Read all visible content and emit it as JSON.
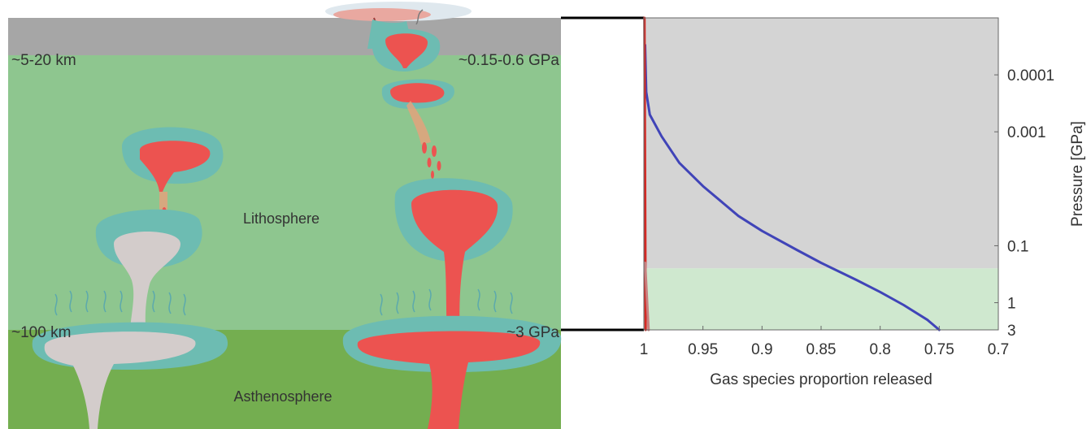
{
  "diagram": {
    "depth_labels": {
      "shallow": "~5-20 km",
      "deep": "~100 km"
    },
    "pressure_labels": {
      "shallow": "~0.15-0.6 GPa",
      "deep": "~3 GPa"
    },
    "layer_labels": {
      "lithosphere": "Lithosphere",
      "asthenosphere": "Asthenosphere"
    },
    "colors": {
      "crust": "#a6a6a6",
      "lithosphere": "#8ec68f",
      "asthenosphere": "#74ae50",
      "magma": "#ec5350",
      "halo": "#6dbcb2",
      "residual_magma": "#d3cccb",
      "vapour": "#5ba9ad"
    }
  },
  "chart_data": {
    "type": "line",
    "xlabel": "Gas species proportion released",
    "ylabel": "Pressure [GPa]",
    "x_ticks": [
      "1",
      "0.95",
      "0.9",
      "0.85",
      "0.8",
      "0.75",
      "0.7"
    ],
    "x_tick_values": [
      1,
      0.95,
      0.9,
      0.85,
      0.8,
      0.75,
      0.7
    ],
    "xlim": [
      1,
      0.7
    ],
    "y_ticks": [
      "0.0001",
      "0.001",
      "0.1",
      "1",
      "3"
    ],
    "y_tick_values": [
      0.0001,
      0.001,
      0.1,
      1,
      3
    ],
    "ylim": [
      1e-05,
      3
    ],
    "y_scale": "log",
    "y_reversed": true,
    "regions": [
      {
        "from": 1e-05,
        "to": 0.25,
        "color": "#d4d4d4"
      },
      {
        "from": 0.25,
        "to": 3,
        "color": "#cfe8cf"
      }
    ],
    "series": [
      {
        "color": "#4044b8",
        "points": [
          [
            0.999,
            3e-05
          ],
          [
            0.998,
            0.0002
          ],
          [
            0.995,
            0.0005
          ],
          [
            0.985,
            0.0012
          ],
          [
            0.97,
            0.0035
          ],
          [
            0.95,
            0.009
          ],
          [
            0.92,
            0.03
          ],
          [
            0.9,
            0.055
          ],
          [
            0.87,
            0.12
          ],
          [
            0.85,
            0.2
          ],
          [
            0.82,
            0.4
          ],
          [
            0.8,
            0.65
          ],
          [
            0.78,
            1.1
          ],
          [
            0.76,
            2.0
          ],
          [
            0.75,
            3.0
          ]
        ]
      },
      {
        "color": "#d42a25",
        "points": [
          [
            0.9995,
            1e-05
          ],
          [
            0.9985,
            3.0
          ]
        ]
      },
      {
        "color": "#c98080",
        "points": [
          [
            0.999,
            0.2
          ],
          [
            0.996,
            3.0
          ]
        ]
      }
    ]
  }
}
